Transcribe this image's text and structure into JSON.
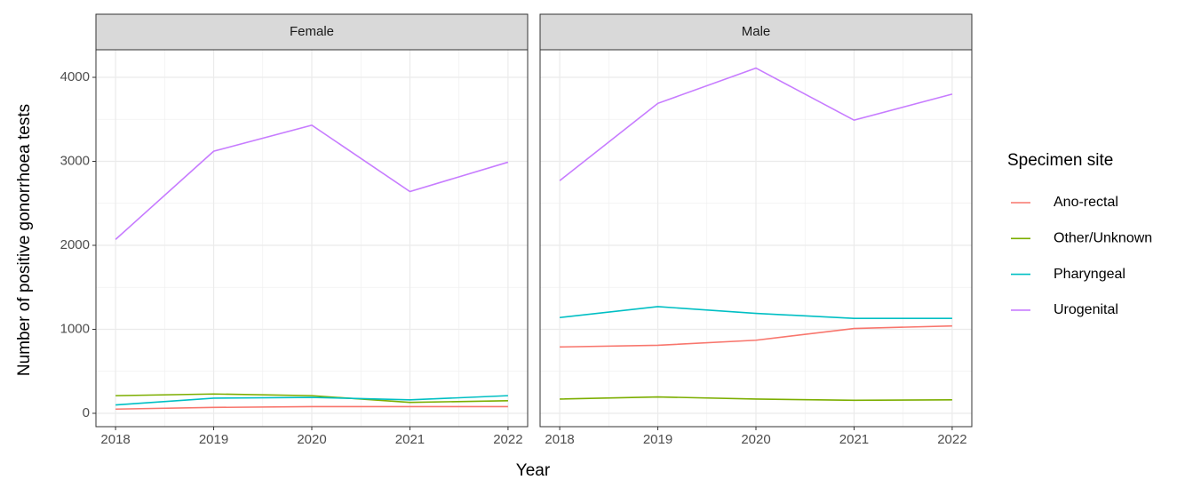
{
  "x_label": "Year",
  "y_label": "Number of positive gonorrhoea tests",
  "legend_title": "Specimen site",
  "chart_data": [
    {
      "type": "line",
      "title": "Female",
      "x": [
        2018,
        2019,
        2020,
        2021,
        2022
      ],
      "xlim": [
        2017.8,
        2022.2
      ],
      "xticks": [
        2018,
        2019,
        2020,
        2021,
        2022
      ],
      "x_minor": [
        2018.5,
        2019.5,
        2020.5,
        2021.5
      ],
      "ylim": [
        -159,
        4328
      ],
      "yticks": [
        0,
        1000,
        2000,
        3000,
        4000
      ],
      "y_minor": [
        500,
        1500,
        2500,
        3500
      ],
      "grid": true,
      "series": [
        {
          "name": "Ano-rectal",
          "color": "#F8766D",
          "values": [
            50,
            70,
            80,
            80,
            80
          ]
        },
        {
          "name": "Other/Unknown",
          "color": "#7CAE00",
          "values": [
            210,
            230,
            210,
            130,
            150
          ]
        },
        {
          "name": "Pharyngeal",
          "color": "#00BFC4",
          "values": [
            100,
            180,
            190,
            160,
            210
          ]
        },
        {
          "name": "Urogenital",
          "color": "#C77CFF",
          "values": [
            2070,
            3120,
            3430,
            2640,
            2990
          ]
        }
      ]
    },
    {
      "type": "line",
      "title": "Male",
      "x": [
        2018,
        2019,
        2020,
        2021,
        2022
      ],
      "xlim": [
        2017.8,
        2022.2
      ],
      "xticks": [
        2018,
        2019,
        2020,
        2021,
        2022
      ],
      "x_minor": [
        2018.5,
        2019.5,
        2020.5,
        2021.5
      ],
      "ylim": [
        -159,
        4328
      ],
      "yticks": [
        0,
        1000,
        2000,
        3000,
        4000
      ],
      "y_minor": [
        500,
        1500,
        2500,
        3500
      ],
      "grid": true,
      "series": [
        {
          "name": "Ano-rectal",
          "color": "#F8766D",
          "values": [
            790,
            810,
            870,
            1010,
            1040
          ]
        },
        {
          "name": "Other/Unknown",
          "color": "#7CAE00",
          "values": [
            170,
            195,
            170,
            155,
            160
          ]
        },
        {
          "name": "Pharyngeal",
          "color": "#00BFC4",
          "values": [
            1140,
            1270,
            1190,
            1130,
            1130
          ]
        },
        {
          "name": "Urogenital",
          "color": "#C77CFF",
          "values": [
            2770,
            3690,
            4110,
            3490,
            3800
          ]
        }
      ]
    }
  ]
}
